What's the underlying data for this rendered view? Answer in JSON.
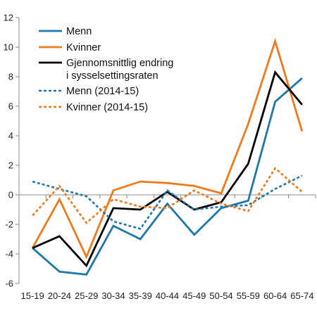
{
  "chart_data": {
    "type": "line",
    "title": "",
    "xlabel": "",
    "ylabel": "",
    "categories": [
      "15-19",
      "20-24",
      "25-29",
      "30-34",
      "35-39",
      "40-44",
      "45-49",
      "50-54",
      "55-59",
      "60-64",
      "65-74"
    ],
    "ylim": [
      -6,
      12
    ],
    "yticks": [
      -6,
      -4,
      -2,
      0,
      2,
      4,
      6,
      8,
      10,
      12
    ],
    "grid": false,
    "legend_position": "top-left",
    "series": [
      {
        "name": "Menn",
        "color": "#1f77a8",
        "style": "solid",
        "values": [
          -3.6,
          -5.2,
          -5.4,
          -2.1,
          -3.0,
          -0.6,
          -2.7,
          -0.9,
          -0.4,
          6.3,
          7.9
        ]
      },
      {
        "name": "Kvinner",
        "color": "#ee7a1c",
        "style": "solid",
        "values": [
          -3.6,
          -0.3,
          -4.2,
          0.3,
          0.9,
          0.8,
          0.6,
          0.1,
          4.8,
          10.4,
          4.3
        ]
      },
      {
        "name": "Gjennomsnittlig endring i sysselsettingsraten",
        "legend_lines": [
          "Gjennomsnittlig endring",
          "i sysselsettingsraten"
        ],
        "color": "#000000",
        "style": "solid",
        "values": [
          -3.6,
          -2.8,
          -4.8,
          -0.9,
          -1.0,
          0.2,
          -1.0,
          -0.5,
          2.1,
          8.3,
          6.1
        ]
      },
      {
        "name": "Menn (2014-15)",
        "color": "#1f77a8",
        "style": "dotted",
        "values": [
          0.9,
          0.4,
          -0.1,
          -1.8,
          -2.3,
          0.3,
          -1.0,
          -0.8,
          -0.7,
          0.4,
          1.3
        ]
      },
      {
        "name": "Kvinner (2014-15)",
        "color": "#ee7a1c",
        "style": "dotted",
        "values": [
          -1.4,
          0.6,
          -1.9,
          -0.3,
          -0.8,
          -0.9,
          0.3,
          -0.6,
          -1.1,
          1.8,
          0.2
        ]
      }
    ]
  }
}
